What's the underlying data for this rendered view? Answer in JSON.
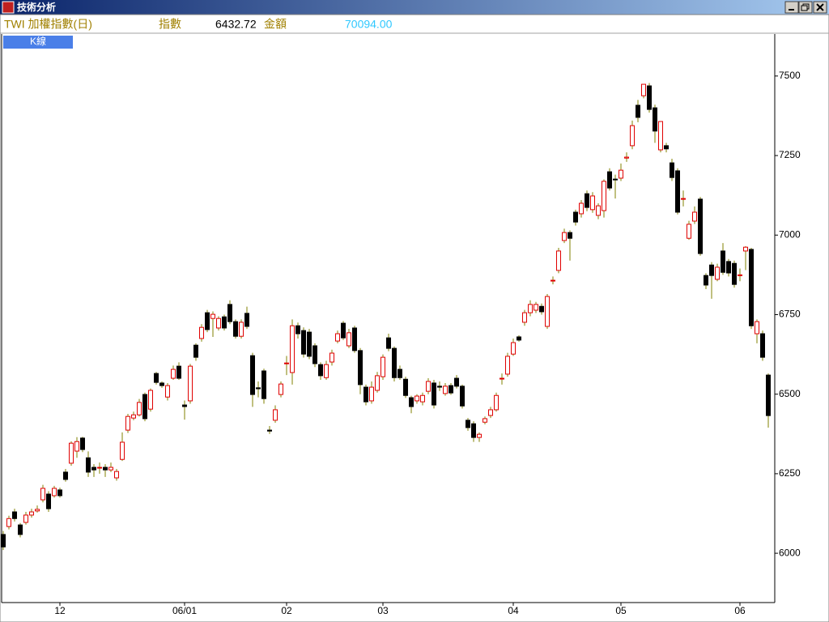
{
  "window": {
    "title": "技術分析"
  },
  "header": {
    "symbol": "TWI 加權指數(日)",
    "index_label": "指數",
    "index_value": "6432.72",
    "amount_label": "金額",
    "amount_value": "70094.00"
  },
  "tab": "K線",
  "chart_data": {
    "type": "candlestick",
    "up_color": "#e00000",
    "down_color": "#000000",
    "wick_color": "#808000",
    "ylim": [
      5845,
      7632
    ],
    "yticks": [
      6000,
      6250,
      6500,
      6750,
      7000,
      7250,
      7500
    ],
    "categories": [
      null,
      null,
      null,
      null,
      null,
      null,
      null,
      null,
      null,
      null,
      "12",
      null,
      null,
      null,
      null,
      null,
      null,
      null,
      null,
      null,
      null,
      null,
      null,
      null,
      null,
      null,
      null,
      null,
      null,
      null,
      null,
      null,
      "06/01",
      null,
      null,
      null,
      null,
      null,
      null,
      null,
      null,
      null,
      null,
      null,
      null,
      null,
      null,
      null,
      null,
      null,
      "02",
      null,
      null,
      null,
      null,
      null,
      null,
      null,
      null,
      null,
      null,
      null,
      null,
      null,
      null,
      null,
      null,
      "03",
      null,
      null,
      null,
      null,
      null,
      null,
      null,
      null,
      null,
      null,
      null,
      null,
      null,
      null,
      null,
      null,
      null,
      null,
      null,
      null,
      null,
      null,
      "04",
      null,
      null,
      null,
      null,
      null,
      null,
      null,
      null,
      null,
      null,
      null,
      null,
      null,
      null,
      null,
      null,
      null,
      null,
      "05",
      null,
      null,
      null,
      null,
      null,
      null,
      null,
      null,
      null,
      null,
      null,
      null,
      null,
      null,
      null,
      null,
      null,
      null,
      null,
      null,
      "06",
      null,
      null,
      null,
      null,
      null
    ],
    "open": [
      6059,
      6084,
      6130,
      6089,
      6097,
      6120,
      6133,
      6168,
      6186,
      6181,
      6199,
      6255,
      6283,
      6321,
      6362,
      6300,
      6270,
      6268,
      6270,
      6262,
      6237,
      6295,
      6387,
      6425,
      6435,
      6499,
      6453,
      6565,
      6535,
      6491,
      6550,
      6588,
      6466,
      6479,
      6654,
      6675,
      6756,
      6738,
      6708,
      6743,
      6782,
      6728,
      6682,
      6754,
      6621,
      6520,
      6573,
      6387,
      6418,
      6499,
      6596,
      6568,
      6715,
      6700,
      6695,
      6652,
      6593,
      6552,
      6601,
      6667,
      6723,
      6652,
      6708,
      6637,
      6522,
      6479,
      6512,
      6555,
      6677,
      6644,
      6578,
      6547,
      6489,
      6479,
      6476,
      6509,
      6535,
      6525,
      6502,
      6527,
      6550,
      6525,
      6418,
      6407,
      6364,
      6412,
      6433,
      6451,
      6548,
      6563,
      6626,
      6680,
      6726,
      6756,
      6764,
      6776,
      6713,
      6856,
      6889,
      6983,
      7008,
      7072,
      7067,
      7130,
      7080,
      7062,
      7077,
      7199,
      7176,
      7179,
      7242,
      7281,
      7408,
      7438,
      7469,
      7400,
      7268,
      7281,
      7227,
      7202,
      7113,
      6990,
      7044,
      7113,
      6873,
      6906,
      6861,
      6950,
      6917,
      6911,
      6873,
      6950,
      6955,
      6690,
      6690,
      6560
    ],
    "high": [
      6070,
      6118,
      6140,
      6095,
      6130,
      6140,
      6150,
      6215,
      6195,
      6212,
      6206,
      6265,
      6352,
      6365,
      6366,
      6320,
      6280,
      6285,
      6280,
      6285,
      6265,
      6380,
      6438,
      6445,
      6485,
      6505,
      6518,
      6570,
      6540,
      6535,
      6590,
      6600,
      6480,
      6595,
      6660,
      6720,
      6765,
      6760,
      6745,
      6750,
      6795,
      6735,
      6735,
      6775,
      6630,
      6540,
      6580,
      6400,
      6465,
      6540,
      6620,
      6735,
      6725,
      6710,
      6705,
      6660,
      6600,
      6605,
      6640,
      6700,
      6730,
      6705,
      6715,
      6645,
      6530,
      6540,
      6570,
      6625,
      6690,
      6650,
      6590,
      6555,
      6495,
      6500,
      6505,
      6550,
      6545,
      6540,
      6535,
      6535,
      6560,
      6530,
      6425,
      6415,
      6380,
      6430,
      6460,
      6505,
      6565,
      6630,
      6675,
      6685,
      6765,
      6795,
      6790,
      6785,
      6815,
      6870,
      6960,
      7020,
      7015,
      7080,
      7110,
      7140,
      7135,
      7100,
      7175,
      7210,
      7190,
      7225,
      7260,
      7360,
      7425,
      7474,
      7478,
      7410,
      7357,
      7290,
      7240,
      7210,
      7140,
      7045,
      7090,
      7120,
      6880,
      6915,
      6910,
      6975,
      6925,
      6920,
      6895,
      6965,
      6960,
      6735,
      6700,
      6565
    ],
    "low": [
      6010,
      6075,
      6100,
      6050,
      6090,
      6112,
      6128,
      6160,
      6130,
      6175,
      6175,
      6225,
      6275,
      6300,
      6318,
      6240,
      6240,
      6250,
      6240,
      6255,
      6228,
      6290,
      6378,
      6418,
      6430,
      6415,
      6445,
      6530,
      6520,
      6480,
      6545,
      6545,
      6420,
      6470,
      6605,
      6665,
      6695,
      6680,
      6700,
      6700,
      6720,
      6675,
      6675,
      6705,
      6460,
      6490,
      6470,
      6375,
      6410,
      6490,
      6560,
      6530,
      6675,
      6615,
      6610,
      6585,
      6545,
      6545,
      6590,
      6660,
      6670,
      6645,
      6630,
      6500,
      6465,
      6470,
      6505,
      6545,
      6635,
      6540,
      6545,
      6488,
      6440,
      6470,
      6465,
      6500,
      6455,
      6510,
      6495,
      6498,
      6518,
      6455,
      6385,
      6350,
      6350,
      6405,
      6425,
      6445,
      6530,
      6555,
      6620,
      6665,
      6715,
      6745,
      6755,
      6750,
      6705,
      6845,
      6880,
      6975,
      6920,
      7030,
      7055,
      7075,
      7070,
      7050,
      7055,
      7140,
      7115,
      7170,
      7230,
      7270,
      7355,
      7430,
      7385,
      7290,
      7260,
      7260,
      7170,
      7065,
      7090,
      6985,
      7035,
      6935,
      6830,
      6800,
      6855,
      6875,
      6870,
      6835,
      6855,
      6890,
      6705,
      6660,
      6605,
      6395
    ],
    "close": [
      6020,
      6109,
      6109,
      6059,
      6120,
      6130,
      6138,
      6204,
      6140,
      6204,
      6181,
      6232,
      6346,
      6351,
      6326,
      6255,
      6262,
      6270,
      6262,
      6270,
      6257,
      6349,
      6430,
      6435,
      6474,
      6423,
      6512,
      6537,
      6527,
      6527,
      6578,
      6550,
      6461,
      6588,
      6616,
      6710,
      6703,
      6751,
      6738,
      6708,
      6728,
      6682,
      6726,
      6713,
      6499,
      6517,
      6486,
      6384,
      6451,
      6532,
      6598,
      6715,
      6690,
      6626,
      6619,
      6596,
      6558,
      6593,
      6629,
      6690,
      6677,
      6693,
      6637,
      6530,
      6476,
      6522,
      6558,
      6616,
      6644,
      6552,
      6552,
      6496,
      6461,
      6494,
      6496,
      6540,
      6466,
      6522,
      6525,
      6504,
      6525,
      6463,
      6395,
      6364,
      6374,
      6423,
      6451,
      6496,
      6550,
      6619,
      6662,
      6670,
      6756,
      6782,
      6782,
      6759,
      6807,
      6858,
      6950,
      7008,
      6990,
      7041,
      7100,
      7087,
      7123,
      7092,
      7169,
      7148,
      7174,
      7204,
      7245,
      7344,
      7370,
      7474,
      7395,
      7327,
      7357,
      7271,
      7181,
      7072,
      7115,
      7034,
      7072,
      6942,
      6843,
      6873,
      6899,
      6883,
      6881,
      6845,
      6875,
      6962,
      6715,
      6728,
      6616,
      6432.72
    ]
  }
}
